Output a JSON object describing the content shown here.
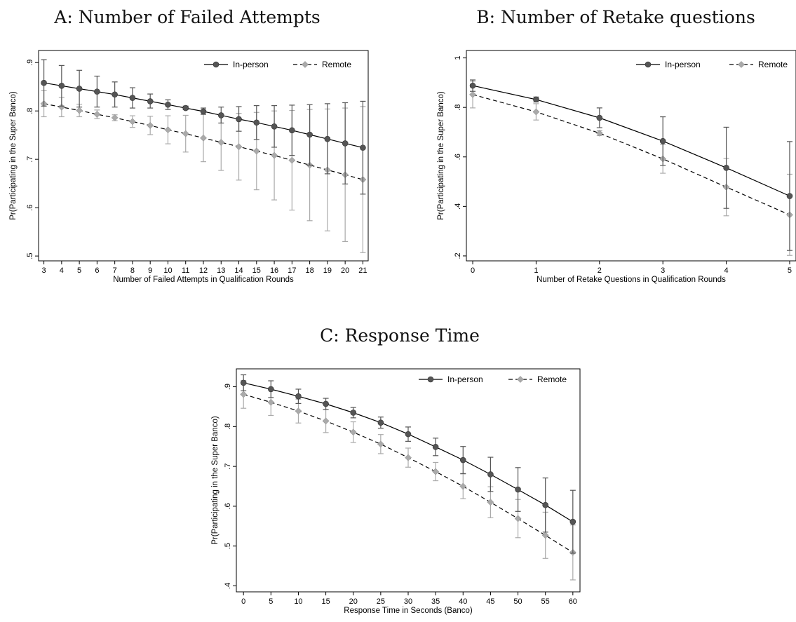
{
  "chart_data": [
    {
      "type": "line",
      "title": "A: Number of Failed Attempts",
      "xlabel": "Number of Failed Attempts in Qualification Rounds",
      "ylabel": "Pr(Participating in the Super Banco)",
      "x": [
        3,
        4,
        5,
        6,
        7,
        8,
        9,
        10,
        11,
        12,
        13,
        14,
        15,
        16,
        17,
        18,
        19,
        20,
        21
      ],
      "xticks": [
        "3",
        "4",
        "5",
        "6",
        "7",
        "8",
        "9",
        "10",
        "11",
        "12",
        "13",
        "14",
        "15",
        "16",
        "17",
        "18",
        "19",
        "20",
        "21"
      ],
      "xlim": [
        2.7,
        21.3
      ],
      "yticks": [
        0.5,
        0.6,
        0.7,
        0.8,
        0.9
      ],
      "ytick_labels": [
        ".5",
        ".6",
        ".7",
        ".8",
        ".9"
      ],
      "ylim": [
        0.49,
        0.925
      ],
      "legend": "top-right",
      "series": [
        {
          "name": "In-person",
          "style": "solid",
          "marker": "circle",
          "color": "#555555",
          "values": [
            0.858,
            0.852,
            0.846,
            0.84,
            0.834,
            0.827,
            0.82,
            0.813,
            0.806,
            0.799,
            0.791,
            0.783,
            0.776,
            0.768,
            0.76,
            0.751,
            0.742,
            0.733,
            0.724
          ],
          "ci_low": [
            0.81,
            0.81,
            0.808,
            0.808,
            0.808,
            0.806,
            0.806,
            0.803,
            0.803,
            0.793,
            0.775,
            0.758,
            0.741,
            0.725,
            0.708,
            0.688,
            0.67,
            0.649,
            0.628
          ],
          "ci_high": [
            0.906,
            0.894,
            0.884,
            0.872,
            0.86,
            0.848,
            0.835,
            0.823,
            0.81,
            0.806,
            0.808,
            0.809,
            0.811,
            0.811,
            0.812,
            0.813,
            0.815,
            0.817,
            0.82
          ]
        },
        {
          "name": "Remote",
          "style": "dashed",
          "marker": "diamond",
          "color": "#aaaaaa",
          "values": [
            0.815,
            0.808,
            0.801,
            0.793,
            0.786,
            0.778,
            0.77,
            0.761,
            0.753,
            0.744,
            0.735,
            0.726,
            0.717,
            0.708,
            0.698,
            0.688,
            0.678,
            0.668,
            0.658
          ],
          "ci_low": [
            0.788,
            0.788,
            0.788,
            0.784,
            0.78,
            0.766,
            0.751,
            0.732,
            0.715,
            0.695,
            0.677,
            0.657,
            0.637,
            0.616,
            0.595,
            0.573,
            0.552,
            0.53,
            0.507
          ],
          "ci_high": [
            0.842,
            0.828,
            0.814,
            0.802,
            0.792,
            0.79,
            0.789,
            0.79,
            0.791,
            0.793,
            0.793,
            0.795,
            0.797,
            0.8,
            0.801,
            0.803,
            0.804,
            0.806,
            0.809
          ]
        }
      ]
    },
    {
      "type": "line",
      "title": "B: Number of Retake questions",
      "xlabel": "Number of Retake Questions in Qualification Rounds",
      "ylabel": "Pr(Participating in the Super Banco)",
      "x": [
        0,
        1,
        2,
        3,
        4,
        5
      ],
      "xticks": [
        "0",
        "1",
        "2",
        "3",
        "4",
        "5"
      ],
      "xlim": [
        -0.1,
        5.1
      ],
      "yticks": [
        0.2,
        0.4,
        0.6,
        0.8,
        1.0
      ],
      "ytick_labels": [
        ".2",
        ".4",
        ".6",
        ".8",
        "1"
      ],
      "ylim": [
        0.18,
        1.03
      ],
      "legend": "top-right",
      "series": [
        {
          "name": "In-person",
          "style": "solid",
          "marker": "circle",
          "color": "#555555",
          "values": [
            0.888,
            0.832,
            0.758,
            0.664,
            0.556,
            0.442
          ],
          "ci_low": [
            0.865,
            0.822,
            0.718,
            0.566,
            0.392,
            0.222
          ],
          "ci_high": [
            0.911,
            0.842,
            0.798,
            0.762,
            0.72,
            0.662
          ]
        },
        {
          "name": "Remote",
          "style": "dashed",
          "marker": "diamond",
          "color": "#aaaaaa",
          "values": [
            0.852,
            0.782,
            0.696,
            0.592,
            0.478,
            0.366
          ],
          "ci_low": [
            0.798,
            0.749,
            0.686,
            0.534,
            0.362,
            0.202
          ],
          "ci_high": [
            0.906,
            0.815,
            0.706,
            0.65,
            0.594,
            0.53
          ]
        }
      ]
    },
    {
      "type": "line",
      "title": "C: Response Time",
      "xlabel": "Response Time in Seconds (Banco)",
      "ylabel": "Pr(Participating in the Super Banco)",
      "x": [
        0,
        5,
        10,
        15,
        20,
        25,
        30,
        35,
        40,
        45,
        50,
        55,
        60
      ],
      "xticks": [
        "0",
        "5",
        "10",
        "15",
        "20",
        "25",
        "30",
        "35",
        "40",
        "45",
        "50",
        "55",
        "60"
      ],
      "xlim": [
        -1.3,
        61.3
      ],
      "yticks": [
        0.4,
        0.5,
        0.6,
        0.7,
        0.8,
        0.9
      ],
      "ytick_labels": [
        ".4",
        ".5",
        ".6",
        ".7",
        ".8",
        ".9"
      ],
      "ylim": [
        0.385,
        0.945
      ],
      "legend": "top-right",
      "series": [
        {
          "name": "In-person",
          "style": "solid",
          "marker": "circle",
          "color": "#555555",
          "values": [
            0.91,
            0.894,
            0.876,
            0.857,
            0.835,
            0.81,
            0.781,
            0.749,
            0.716,
            0.68,
            0.642,
            0.603,
            0.561
          ],
          "ci_low": [
            0.89,
            0.873,
            0.858,
            0.843,
            0.822,
            0.796,
            0.763,
            0.727,
            0.682,
            0.637,
            0.587,
            0.535,
            0.482
          ],
          "ci_high": [
            0.93,
            0.915,
            0.894,
            0.871,
            0.848,
            0.824,
            0.799,
            0.771,
            0.75,
            0.723,
            0.697,
            0.671,
            0.64
          ]
        },
        {
          "name": "Remote",
          "style": "dashed",
          "marker": "diamond",
          "color": "#aaaaaa",
          "values": [
            0.881,
            0.861,
            0.839,
            0.814,
            0.786,
            0.756,
            0.722,
            0.687,
            0.65,
            0.61,
            0.569,
            0.527,
            0.484
          ],
          "ci_low": [
            0.846,
            0.828,
            0.809,
            0.785,
            0.76,
            0.732,
            0.698,
            0.664,
            0.619,
            0.571,
            0.521,
            0.469,
            0.415
          ],
          "ci_high": [
            0.916,
            0.894,
            0.869,
            0.843,
            0.812,
            0.78,
            0.746,
            0.71,
            0.681,
            0.649,
            0.617,
            0.585,
            0.553
          ]
        }
      ]
    }
  ]
}
